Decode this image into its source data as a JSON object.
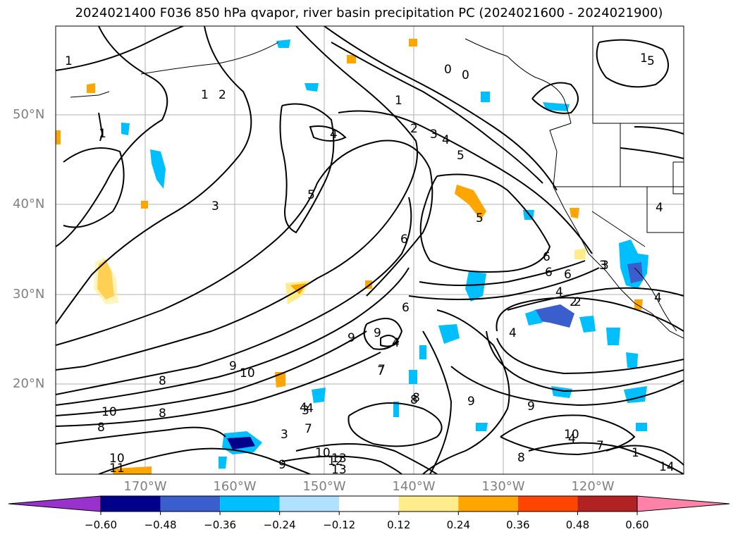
{
  "title": "2024021400 F036 850 hPa qvapor, river basin precipitation PC (2024021600 - 2024021900)",
  "lat_labels": [
    "50°N",
    "40°N",
    "30°N",
    "20°N"
  ],
  "lon_labels": [
    "170°W",
    "160°W",
    "150°W",
    "140°W",
    "130°W",
    "120°W"
  ],
  "colorbar": {
    "ticks": [
      "−0.60",
      "−0.48",
      "−0.36",
      "−0.24",
      "−0.12",
      "0.12",
      "0.24",
      "0.36",
      "0.48",
      "0.60"
    ],
    "colors": [
      "#9932CC",
      "#00008B",
      "#3A5FCD",
      "#00BFFF",
      "#B0E2FF",
      "#FFFFFF",
      "#FFEC8B",
      "#FFA500",
      "#FF4500",
      "#B22222",
      "#FF82AB"
    ]
  },
  "contour_labels": [
    "1",
    "2",
    "1",
    "1",
    "3",
    "4",
    "5",
    "0",
    "0",
    "1",
    "2",
    "3",
    "4",
    "5",
    "6",
    "6",
    "6",
    "9",
    "9",
    "4",
    "7",
    "8",
    "8",
    "9",
    "10",
    "10",
    "8",
    "10",
    "11",
    "12",
    "13",
    "9",
    "7",
    "10",
    "12",
    "13",
    "14",
    "7",
    "8",
    "9",
    "4",
    "1",
    "6",
    "4",
    "4",
    "5",
    "3",
    "7",
    "8",
    "9",
    "10",
    "1",
    "2",
    "3",
    "4",
    "3",
    "4",
    "4",
    "6",
    "3",
    "2",
    "1",
    "5",
    "4",
    "8"
  ]
}
